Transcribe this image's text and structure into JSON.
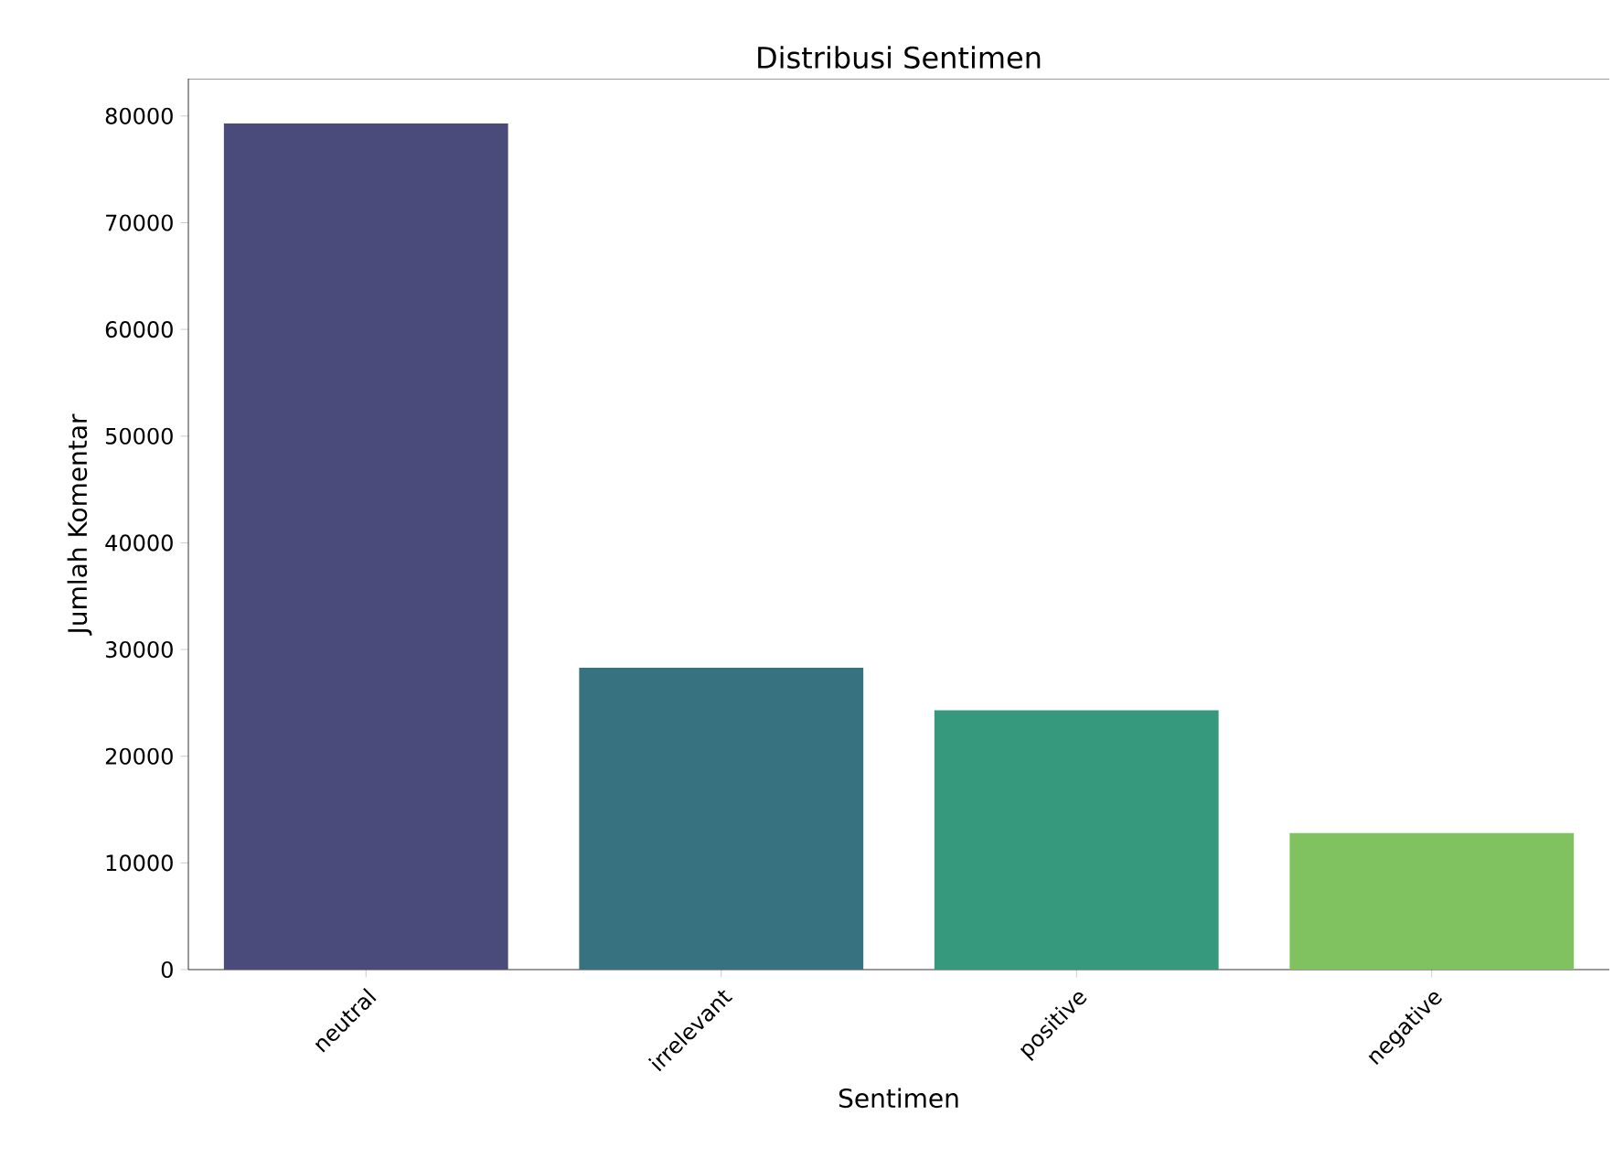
{
  "chart_data": {
    "type": "bar",
    "title": "Distribusi Sentimen",
    "xlabel": "Sentimen",
    "ylabel": "Jumlah Komentar",
    "categories": [
      "neutral",
      "irrelevant",
      "positive",
      "negative"
    ],
    "values": [
      79300,
      28300,
      24300,
      12800
    ],
    "colors": [
      "#4a4b7a",
      "#377281",
      "#36997e",
      "#80c160"
    ],
    "ylim": [
      0,
      83500
    ],
    "yticks": [
      0,
      10000,
      20000,
      30000,
      40000,
      50000,
      60000,
      70000,
      80000
    ],
    "grid": false
  }
}
